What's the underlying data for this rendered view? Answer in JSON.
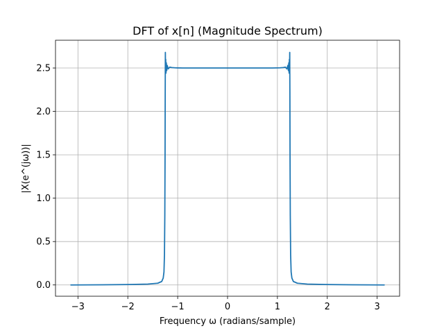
{
  "chart_data": {
    "type": "line",
    "title": "DFT of x[n] (Magnitude Spectrum)",
    "xlabel": "Frequency ω (radians/sample)",
    "ylabel": "|X(e^(jω))|",
    "xlim": [
      -3.45,
      3.45
    ],
    "ylim": [
      -0.13,
      2.82
    ],
    "grid": true,
    "x_ticks": [
      {
        "value": -3,
        "label": "−3"
      },
      {
        "value": -2,
        "label": "−2"
      },
      {
        "value": -1,
        "label": "−1"
      },
      {
        "value": 0,
        "label": "0"
      },
      {
        "value": 1,
        "label": "1"
      },
      {
        "value": 2,
        "label": "2"
      },
      {
        "value": 3,
        "label": "3"
      }
    ],
    "y_ticks": [
      {
        "value": 0.0,
        "label": "0.0"
      },
      {
        "value": 0.5,
        "label": "0.5"
      },
      {
        "value": 1.0,
        "label": "1.0"
      },
      {
        "value": 1.5,
        "label": "1.5"
      },
      {
        "value": 2.0,
        "label": "2.0"
      },
      {
        "value": 2.5,
        "label": "2.5"
      }
    ],
    "series": [
      {
        "color": "#1f77b4",
        "x": [
          -3.1416,
          -2.5,
          -2.0,
          -1.6,
          -1.4,
          -1.32,
          -1.29,
          -1.275,
          -1.265,
          -1.258,
          -1.253,
          -1.25,
          -1.247,
          -1.244,
          -1.24,
          -1.235,
          -1.228,
          -1.22,
          -1.21,
          -1.19,
          -1.16,
          -1.12,
          -1.05,
          -0.9,
          -0.6,
          -0.3,
          0.0,
          0.3,
          0.6,
          0.9,
          1.05,
          1.12,
          1.16,
          1.19,
          1.21,
          1.22,
          1.228,
          1.235,
          1.24,
          1.244,
          1.247,
          1.25,
          1.253,
          1.258,
          1.265,
          1.275,
          1.29,
          1.32,
          1.4,
          1.6,
          2.0,
          2.5,
          3.1416
        ],
        "y": [
          0.0,
          0.002,
          0.005,
          0.01,
          0.02,
          0.04,
          0.08,
          0.15,
          0.35,
          0.8,
          1.5,
          2.2,
          2.68,
          2.45,
          2.6,
          2.44,
          2.56,
          2.47,
          2.53,
          2.49,
          2.51,
          2.505,
          2.502,
          2.5,
          2.5,
          2.5,
          2.5,
          2.5,
          2.5,
          2.5,
          2.502,
          2.505,
          2.51,
          2.49,
          2.53,
          2.47,
          2.56,
          2.44,
          2.6,
          2.45,
          2.68,
          2.2,
          1.5,
          0.8,
          0.35,
          0.15,
          0.08,
          0.04,
          0.02,
          0.01,
          0.005,
          0.002,
          0.0
        ]
      }
    ]
  }
}
